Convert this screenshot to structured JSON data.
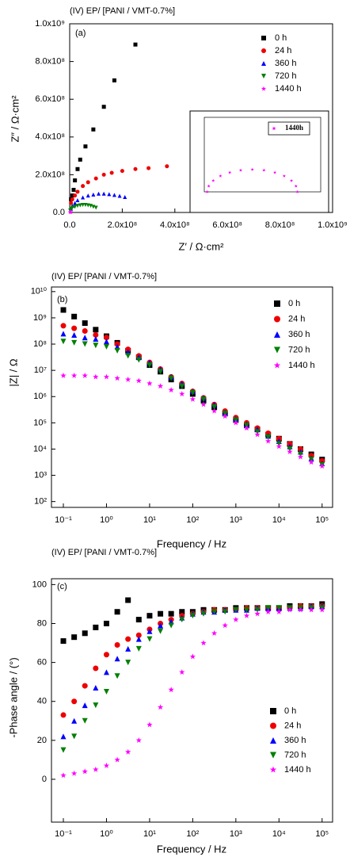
{
  "chart_data": [
    {
      "type": "scatter",
      "title": "(IV) EP/ [PANI / VMT-0.7%]",
      "panel_label": "(a)",
      "x_label": "Z′ / Ω·cm²",
      "y_label": "Z″ / Ω·cm²",
      "xlim": [
        0,
        1000000000.0
      ],
      "ylim": [
        0,
        1000000000.0
      ],
      "xticks": [
        {
          "value": 0,
          "label": "0.0"
        },
        {
          "value": 200000000.0,
          "label": "2.0x10⁸"
        },
        {
          "value": 400000000.0,
          "label": "4.0x10⁸"
        },
        {
          "value": 600000000.0,
          "label": "6.0x10⁸"
        },
        {
          "value": 800000000.0,
          "label": "8.0x10⁸"
        },
        {
          "value": 1000000000.0,
          "label": "1.0x10⁹"
        }
      ],
      "yticks": [
        {
          "value": 0,
          "label": "0.0"
        },
        {
          "value": 200000000.0,
          "label": "2.0x10⁸"
        },
        {
          "value": 400000000.0,
          "label": "4.0x10⁸"
        },
        {
          "value": 600000000.0,
          "label": "6.0x10⁸"
        },
        {
          "value": 800000000.0,
          "label": "8.0x10⁸"
        },
        {
          "value": 1000000000.0,
          "label": "1.0x10⁹"
        }
      ],
      "legend": "upper right",
      "series": [
        {
          "name": "0 h",
          "color": "#000000",
          "marker": "square",
          "x": [
            5000000.0,
            10000000.0,
            15000000.0,
            20000000.0,
            30000000.0,
            40000000.0,
            60000000.0,
            90000000.0,
            130000000.0,
            170000000.0,
            250000000.0
          ],
          "values": [
            70000000.0,
            90000000.0,
            120000000.0,
            170000000.0,
            230000000.0,
            280000000.0,
            350000000.0,
            440000000.0,
            560000000.0,
            700000000.0,
            890000000.0
          ]
        },
        {
          "name": "24 h",
          "color": "#ee0000",
          "marker": "circle",
          "x": [
            5000000.0,
            10000000.0,
            20000000.0,
            30000000.0,
            50000000.0,
            70000000.0,
            100000000.0,
            130000000.0,
            160000000.0,
            200000000.0,
            250000000.0,
            300000000.0,
            370000000.0
          ],
          "values": [
            50000000.0,
            70000000.0,
            90000000.0,
            110000000.0,
            140000000.0,
            160000000.0,
            180000000.0,
            200000000.0,
            210000000.0,
            220000000.0,
            230000000.0,
            235000000.0,
            245000000.0
          ]
        },
        {
          "name": "360 h",
          "color": "#0000ff",
          "marker": "triangle-up",
          "x": [
            5000000.0,
            10000000.0,
            20000000.0,
            30000000.0,
            50000000.0,
            70000000.0,
            90000000.0,
            110000000.0,
            130000000.0,
            150000000.0,
            170000000.0,
            190000000.0,
            210000000.0
          ],
          "values": [
            20000000.0,
            35000000.0,
            50000000.0,
            65000000.0,
            80000000.0,
            90000000.0,
            95000000.0,
            100000000.0,
            100000000.0,
            97000000.0,
            93000000.0,
            88000000.0,
            82000000.0
          ]
        },
        {
          "name": "720 h",
          "color": "#008000",
          "marker": "triangle-down",
          "x": [
            2000000.0,
            5000000.0,
            10000000.0,
            20000000.0,
            30000000.0,
            40000000.0,
            50000000.0,
            60000000.0,
            70000000.0,
            80000000.0,
            90000000.0,
            100000000.0
          ],
          "values": [
            10000000.0,
            20000000.0,
            25000000.0,
            30000000.0,
            35000000.0,
            38000000.0,
            40000000.0,
            40000000.0,
            38000000.0,
            35000000.0,
            30000000.0,
            25000000.0
          ]
        },
        {
          "name": "1440 h",
          "color": "#ff00ff",
          "marker": "star",
          "x": [
            1000000.0,
            2000000.0,
            3000000.0,
            5000000.0
          ],
          "values": [
            1000000.0,
            1500000.0,
            2000000.0,
            2000000.0
          ]
        }
      ]
    },
    {
      "type": "scatter",
      "inset": true,
      "xlim": [
        0,
        8000000.0
      ],
      "ylim": [
        0,
        8000000.0
      ],
      "legend": "upper right",
      "series": [
        {
          "name": "1440h",
          "color": "#ff00ff",
          "marker": "star",
          "x": [
            200000.0,
            305000.0,
            615000.0,
            1110000.0,
            1750000.0,
            2500000.0,
            3300000.0,
            4100000.0,
            4850000.0,
            5490000.0,
            5990000.0,
            6300000.0,
            6400000.0
          ],
          "values": [
            0,
            620000.0,
            1200000.0,
            1700000.0,
            2080000.0,
            2320000.0,
            2400000.0,
            2320000.0,
            2080000.0,
            1700000.0,
            1200000.0,
            620000.0,
            0
          ]
        }
      ]
    },
    {
      "type": "scatter",
      "title": "(IV) EP/ [PANI / VMT-0.7%]",
      "panel_label": "(b)",
      "x_label": "Frequency / Hz",
      "y_label": "|Z| / Ω",
      "xscale": "log",
      "yscale": "log",
      "xlim": [
        0.053,
        175000
      ],
      "ylim": [
        60,
        15000000000.0
      ],
      "xticks": [
        {
          "value": 0.1,
          "label": "10⁻¹"
        },
        {
          "value": 1,
          "label": "10⁰"
        },
        {
          "value": 10,
          "label": "10¹"
        },
        {
          "value": 100,
          "label": "10²"
        },
        {
          "value": 1000,
          "label": "10³"
        },
        {
          "value": 10000,
          "label": "10⁴"
        },
        {
          "value": 100000,
          "label": "10⁵"
        }
      ],
      "yticks": [
        {
          "value": 100,
          "label": "10²"
        },
        {
          "value": 1000,
          "label": "10³"
        },
        {
          "value": 10000,
          "label": "10⁴"
        },
        {
          "value": 100000,
          "label": "10⁵"
        },
        {
          "value": 1000000,
          "label": "10⁶"
        },
        {
          "value": 10000000.0,
          "label": "10⁷"
        },
        {
          "value": 100000000.0,
          "label": "10⁸"
        },
        {
          "value": 1000000000.0,
          "label": "10⁹"
        },
        {
          "value": 10000000000.0,
          "label": "10¹⁰"
        }
      ],
      "legend": "upper right",
      "x": [
        0.1,
        0.178,
        0.316,
        0.562,
        1,
        1.78,
        3.16,
        5.62,
        10,
        17.8,
        31.6,
        56.2,
        100,
        178,
        316,
        562,
        1000,
        1780,
        3160,
        5620,
        10000,
        17800,
        31600,
        56200,
        100000
      ],
      "series": [
        {
          "name": "0 h",
          "color": "#000000",
          "marker": "square",
          "values": [
            2000000000.0,
            1120000000.0,
            630000000.0,
            355000000.0,
            200000000.0,
            112000000.0,
            56200000.0,
            31600000.0,
            15800000.0,
            8910000.0,
            4470000.0,
            2500000.0,
            1260000.0,
            708000.0,
            398000.0,
            224000.0,
            126000.0,
            79000.0,
            56200.0,
            35500.0,
            25000.0,
            15800.0,
            10000.0,
            6300.0,
            4000.0
          ]
        },
        {
          "name": "24 h",
          "color": "#ee0000",
          "marker": "circle",
          "values": [
            500000000.0,
            400000000.0,
            316000000.0,
            224000000.0,
            178000000.0,
            100000000.0,
            63000000.0,
            35500000.0,
            20000000.0,
            11200000.0,
            5620000.0,
            3160000.0,
            1580000.0,
            891000.0,
            500000.0,
            282000.0,
            158000.0,
            100000.0,
            63000.0,
            40000.0,
            25000.0,
            15800.0,
            10000.0,
            5620.0,
            3550.0
          ]
        },
        {
          "name": "360 h",
          "color": "#0000ff",
          "marker": "triangle-up",
          "values": [
            250000000.0,
            224000000.0,
            178000000.0,
            158000000.0,
            126000000.0,
            79000000.0,
            50000000.0,
            31600000.0,
            20000000.0,
            11200000.0,
            5620000.0,
            3160000.0,
            1580000.0,
            891000.0,
            500000.0,
            250000.0,
            141000.0,
            89100.0,
            56200.0,
            31600.0,
            20000.0,
            12600.0,
            7900.0,
            4470.0,
            2820.0
          ]
        },
        {
          "name": "720 h",
          "color": "#008000",
          "marker": "triangle-down",
          "values": [
            126000000.0,
            112000000.0,
            100000000.0,
            89100000.0,
            79000000.0,
            56200000.0,
            35500000.0,
            25000000.0,
            15800000.0,
            8910000.0,
            5000000.0,
            2500000.0,
            1410000.0,
            790000.0,
            400000.0,
            224000.0,
            126000.0,
            79000.0,
            44700.0,
            28200.0,
            15800.0,
            10000.0,
            6300.0,
            4000.0,
            2500.0
          ]
        },
        {
          "name": "1440 h",
          "color": "#ff00ff",
          "marker": "star",
          "values": [
            6300000.0,
            6300000.0,
            6300000.0,
            5620000.0,
            5620000.0,
            5000000.0,
            4470000.0,
            4000000.0,
            3160000.0,
            2500000.0,
            1780000.0,
            1260000.0,
            790000.0,
            500000.0,
            282000.0,
            178000.0,
            100000.0,
            63000.0,
            35500.0,
            20000.0,
            12600.0,
            7900.0,
            5000.0,
            3160.0,
            2240.0
          ]
        }
      ]
    },
    {
      "type": "scatter",
      "title": "(IV) EP/ [PANI / VMT-0.7%]",
      "panel_label": "(c)",
      "x_label": "Frequency / Hz",
      "y_label": "-Phase angle / (°)",
      "xscale": "log",
      "xlim": [
        0.053,
        175000
      ],
      "ylim": [
        -22,
        103
      ],
      "xticks": [
        {
          "value": 0.1,
          "label": "10⁻¹"
        },
        {
          "value": 1,
          "label": "10⁰"
        },
        {
          "value": 10,
          "label": "10¹"
        },
        {
          "value": 100,
          "label": "10²"
        },
        {
          "value": 1000,
          "label": "10³"
        },
        {
          "value": 10000,
          "label": "10⁴"
        },
        {
          "value": 100000,
          "label": "10⁵"
        }
      ],
      "yticks": [
        0,
        20,
        40,
        60,
        80,
        100
      ],
      "legend": "lower right",
      "x": [
        0.1,
        0.178,
        0.316,
        0.562,
        1,
        1.78,
        3.16,
        5.62,
        10,
        17.8,
        31.6,
        56.2,
        100,
        178,
        316,
        562,
        1000,
        1780,
        3160,
        5620,
        10000,
        17800,
        31600,
        56200,
        100000
      ],
      "series": [
        {
          "name": "0 h",
          "color": "#000000",
          "marker": "square",
          "values": [
            71,
            73,
            75,
            78,
            80,
            86,
            92,
            82,
            84,
            85,
            85,
            86,
            86,
            87,
            87,
            87,
            88,
            88,
            88,
            88,
            88,
            89,
            89,
            89,
            90
          ]
        },
        {
          "name": "24 h",
          "color": "#ee0000",
          "marker": "circle",
          "values": [
            33,
            40,
            48,
            57,
            64,
            69,
            72,
            74,
            77,
            80,
            82,
            84,
            85,
            86,
            87,
            87,
            87,
            88,
            88,
            88,
            88,
            88,
            89,
            89,
            89
          ]
        },
        {
          "name": "360 h",
          "color": "#0000ff",
          "marker": "triangle-up",
          "values": [
            22,
            30,
            38,
            47,
            55,
            62,
            67,
            72,
            76,
            79,
            81,
            83,
            85,
            86,
            86,
            87,
            87,
            87,
            88,
            88,
            88,
            88,
            88,
            89,
            89
          ]
        },
        {
          "name": "720 h",
          "color": "#008000",
          "marker": "triangle-down",
          "values": [
            15,
            22,
            30,
            38,
            45,
            53,
            60,
            67,
            72,
            76,
            79,
            82,
            84,
            85,
            86,
            86,
            87,
            87,
            87,
            88,
            88,
            88,
            88,
            88,
            88
          ]
        },
        {
          "name": "1440 h",
          "color": "#ff00ff",
          "marker": "star",
          "values": [
            2,
            3,
            4,
            5,
            7,
            10,
            14,
            20,
            28,
            37,
            46,
            55,
            63,
            70,
            75,
            79,
            82,
            84,
            85,
            86,
            86,
            87,
            87,
            87,
            87
          ]
        }
      ]
    }
  ]
}
